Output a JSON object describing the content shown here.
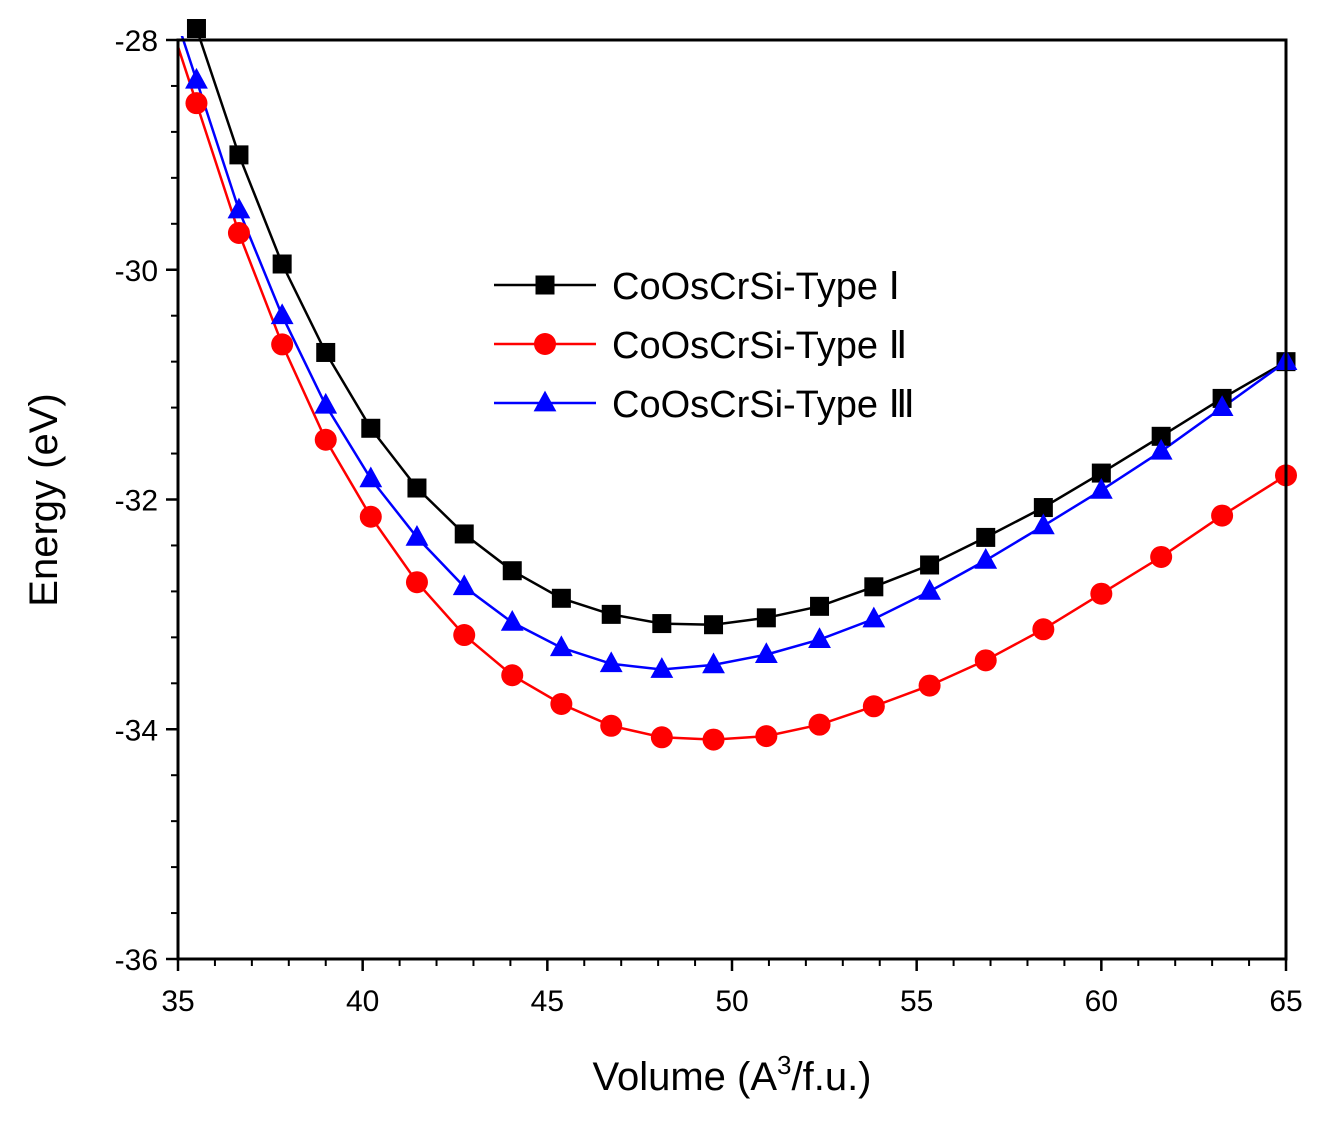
{
  "chart_data": {
    "type": "line",
    "xlabel": "Volume (A",
    "xlabel_sup": "3",
    "xlabel_suffix": "/f.u.)",
    "ylabel": "Energy (eV)",
    "xlim": [
      35,
      65
    ],
    "ylim": [
      -36,
      -28
    ],
    "xticks": [
      35,
      40,
      45,
      50,
      55,
      60,
      65
    ],
    "yticks": [
      -28,
      -30,
      -32,
      -34,
      -36
    ],
    "legend_position": "center",
    "series": [
      {
        "name": "CoOsCrSi-Type Ⅰ",
        "color": "#000000",
        "marker": "square",
        "x": [
          35.5,
          36.65,
          37.82,
          39.0,
          40.22,
          41.47,
          42.75,
          44.05,
          45.38,
          46.73,
          48.1,
          49.5,
          50.93,
          52.37,
          53.84,
          55.35,
          56.87,
          58.43,
          60.0,
          61.62,
          63.27,
          65.0
        ],
        "y": [
          -27.9,
          -29.0,
          -29.95,
          -30.72,
          -31.38,
          -31.9,
          -32.3,
          -32.62,
          -32.86,
          -33.0,
          -33.08,
          -33.09,
          -33.03,
          -32.93,
          -32.76,
          -32.57,
          -32.33,
          -32.07,
          -31.77,
          -31.45,
          -31.12,
          -30.8
        ]
      },
      {
        "name": "CoOsCrSi-Type Ⅱ",
        "color": "#ff0000",
        "marker": "circle",
        "x": [
          35.5,
          36.65,
          37.82,
          39.0,
          40.22,
          41.47,
          42.75,
          44.05,
          45.38,
          46.73,
          48.1,
          49.5,
          50.93,
          52.37,
          53.84,
          55.35,
          56.87,
          58.43,
          60.0,
          61.62,
          63.27,
          65.0
        ],
        "y": [
          -28.55,
          -29.68,
          -30.65,
          -31.48,
          -32.15,
          -32.72,
          -33.18,
          -33.53,
          -33.78,
          -33.97,
          -34.07,
          -34.09,
          -34.06,
          -33.96,
          -33.8,
          -33.62,
          -33.4,
          -33.13,
          -32.82,
          -32.5,
          -32.14,
          -31.79
        ]
      },
      {
        "name": "CoOsCrSi-Type Ⅲ",
        "color": "#0000ff",
        "marker": "triangle",
        "x": [
          35.5,
          36.65,
          37.82,
          39.0,
          40.22,
          41.47,
          42.75,
          44.05,
          45.38,
          46.73,
          48.1,
          49.5,
          50.93,
          52.37,
          53.84,
          55.35,
          56.87,
          58.43,
          60.0,
          61.62,
          63.27,
          65.0
        ],
        "y": [
          -28.35,
          -29.48,
          -30.4,
          -31.18,
          -31.82,
          -32.33,
          -32.76,
          -33.07,
          -33.29,
          -33.43,
          -33.48,
          -33.44,
          -33.35,
          -33.22,
          -33.04,
          -32.8,
          -32.53,
          -32.23,
          -31.92,
          -31.58,
          -31.2,
          -30.8
        ]
      }
    ]
  }
}
